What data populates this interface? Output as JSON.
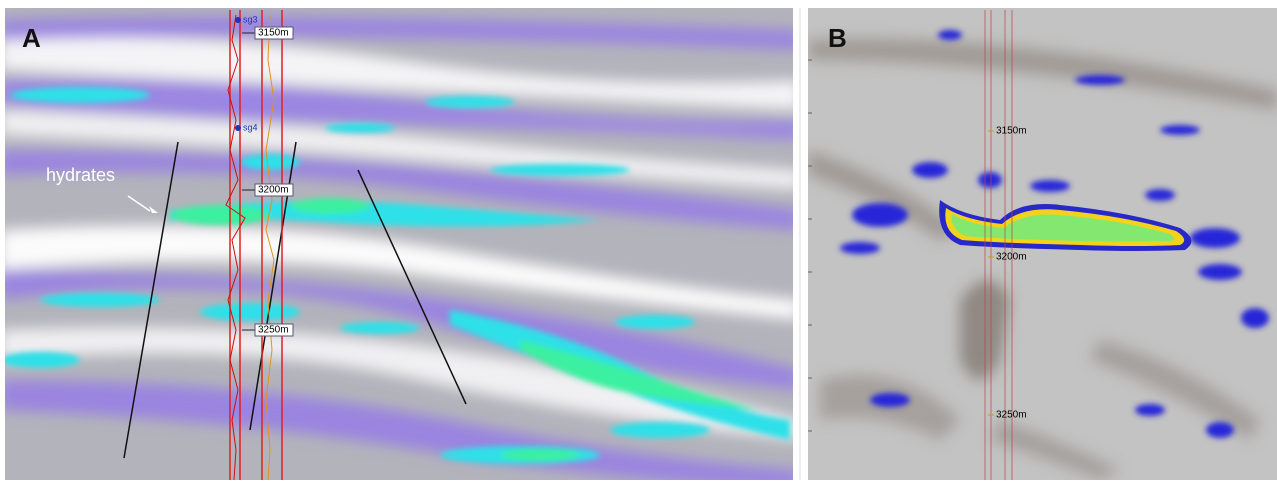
{
  "panels": [
    {
      "label": "A",
      "annotation": "hydrates",
      "wells": [
        "sg3",
        "sg4"
      ],
      "depths": [
        "3150m",
        "3200m",
        "3250m"
      ]
    },
    {
      "label": "B",
      "depths": [
        "3150m",
        "3200m",
        "3250m"
      ]
    }
  ]
}
